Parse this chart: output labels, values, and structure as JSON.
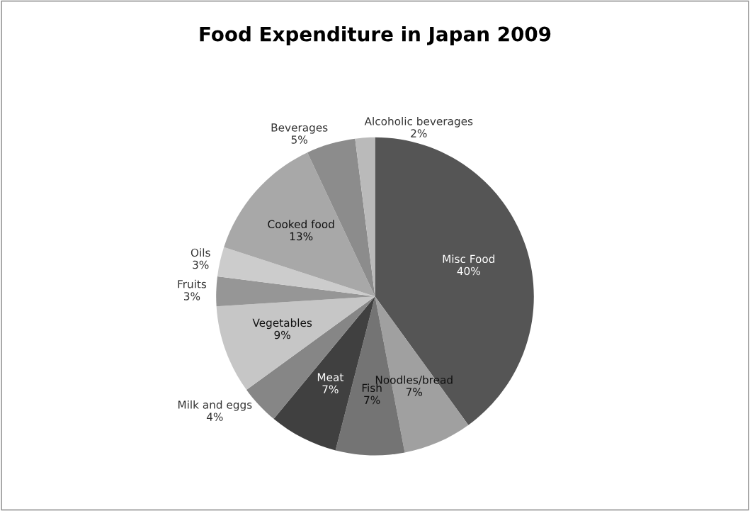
{
  "chart_data": {
    "type": "pie",
    "title": "Food Expenditure in Japan 2009",
    "categories": [
      "Misc Food",
      "Noodles/bread",
      "Fish",
      "Meat",
      "Milk and eggs",
      "Vegetables",
      "Fruits",
      "Oils",
      "Cooked food",
      "Beverages",
      "Alcoholic beverages"
    ],
    "values": [
      40,
      7,
      7,
      7,
      4,
      9,
      3,
      3,
      13,
      5,
      2
    ],
    "value_labels": [
      "40%",
      "7%",
      "7%",
      "7%",
      "4%",
      "9%",
      "3%",
      "3%",
      "13%",
      "5%",
      "2%"
    ],
    "colors": [
      "#555555",
      "#a0a0a0",
      "#747474",
      "#404040",
      "#868686",
      "#c6c6c6",
      "#969696",
      "#cccccc",
      "#a8a8a8",
      "#8c8c8c",
      "#bababa"
    ]
  }
}
